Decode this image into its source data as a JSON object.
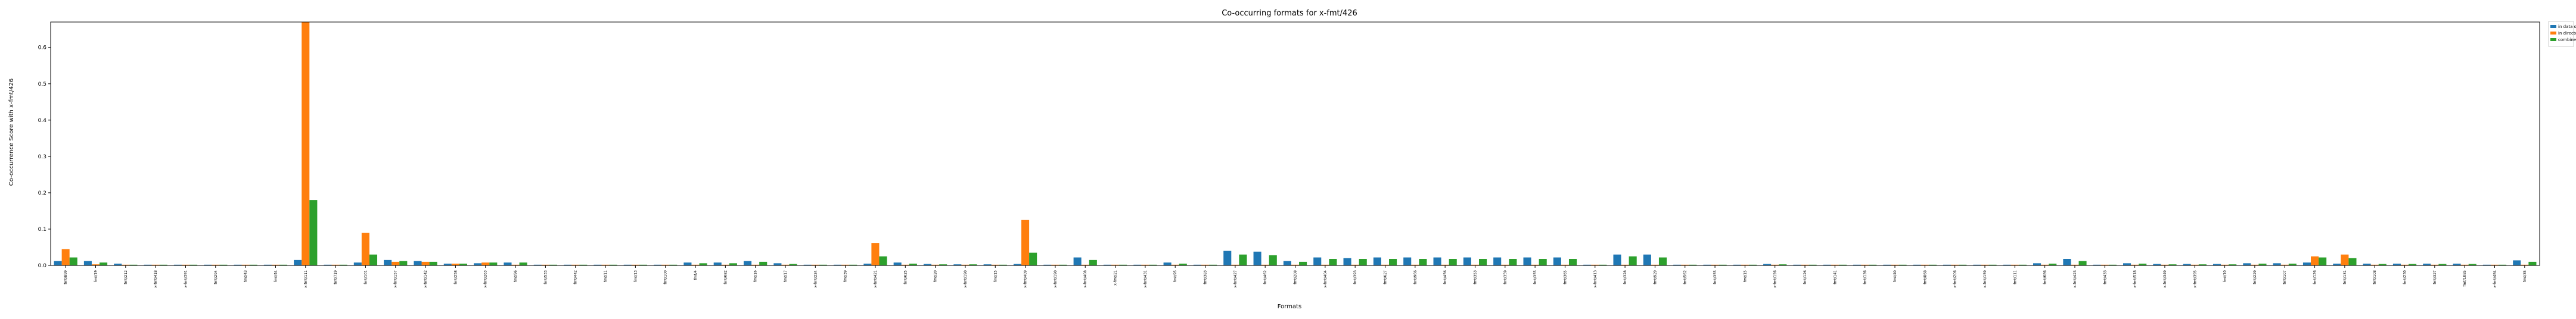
{
  "chart_data": {
    "type": "bar",
    "title": "Co-occurring formats for x-fmt/426",
    "xlabel": "Formats",
    "ylabel": "Co-occurrence Score with x-fmt/426",
    "ylim": [
      0,
      0.67
    ],
    "yticks": [
      0.0,
      0.1,
      0.2,
      0.3,
      0.4,
      0.5,
      0.6
    ],
    "grid": false,
    "legend_position": "top-right",
    "colors": [
      "#1f77b4",
      "#ff7f0e",
      "#2ca02c"
    ],
    "categories": [
      "fmt/899",
      "fmt/19",
      "fmt/212",
      "x-fmt/418",
      "x-fmt/391",
      "fmt/294",
      "fmt/43",
      "fmt/44",
      "x-fmt/111",
      "fmt/719",
      "fmt/101",
      "x-fmt/157",
      "x-fmt/142",
      "fmt/258",
      "x-fmt/263",
      "fmt/96",
      "fmt/533",
      "fmt/442",
      "fmt/11",
      "fmt/13",
      "fmt/100",
      "fmt/4",
      "fmt/682",
      "fmt/16",
      "fmt/17",
      "x-fmt/224",
      "fmt/39",
      "x-fmt/421",
      "fmt/625",
      "fmt/20",
      "x-fmt/190",
      "fmt/15",
      "x-fmt/409",
      "x-fmt/190",
      "x-fmt/408",
      "x-fmt/21",
      "x-fmt/431",
      "fmt/95",
      "fmt/383",
      "x-fmt/427",
      "fmt/462",
      "fmt/208",
      "x-fmt/404",
      "fmt/393",
      "fmt/627",
      "fmt/966",
      "fmt/456",
      "fmt/353",
      "fmt/359",
      "fmt/355",
      "fmt/365",
      "x-fmt/413",
      "fmt/328",
      "fmt/929",
      "fmt/562",
      "fmt/355",
      "fmt/15",
      "x-fmt/156",
      "fmt/126",
      "fmt/141",
      "fmt/136",
      "fmt/40",
      "fmt/868",
      "x-fmt/206",
      "x-fmt/159",
      "fmt/111",
      "fmt/686",
      "x-fmt/423",
      "fmt/433",
      "x-fmt/518",
      "x-fmt/349",
      "x-fmt/395",
      "fmt/10",
      "fmt/229",
      "fmt/107",
      "fmt/126",
      "fmt/131",
      "fmt/108",
      "fmt/230",
      "fmt/327",
      "fmt/1085",
      "x-fmt/484",
      "fmt/35"
    ],
    "series": [
      {
        "name": "in data objects",
        "values": [
          0.012,
          0.012,
          0.005,
          0.002,
          0.002,
          0.002,
          0.002,
          0.002,
          0.015,
          0.002,
          0.008,
          0.015,
          0.012,
          0.005,
          0.006,
          0.008,
          0.002,
          0.002,
          0.002,
          0.002,
          0.002,
          0.008,
          0.008,
          0.012,
          0.006,
          0.002,
          0.002,
          0.005,
          0.008,
          0.004,
          0.003,
          0.003,
          0.004,
          0.002,
          0.022,
          0.002,
          0.002,
          0.008,
          0.002,
          0.04,
          0.038,
          0.012,
          0.022,
          0.02,
          0.022,
          0.022,
          0.022,
          0.022,
          0.022,
          0.022,
          0.022,
          0.002,
          0.03,
          0.03,
          0.002,
          0.002,
          0.002,
          0.004,
          0.002,
          0.002,
          0.002,
          0.002,
          0.002,
          0.002,
          0.002,
          0.002,
          0.006,
          0.018,
          0.002,
          0.006,
          0.004,
          0.004,
          0.004,
          0.006,
          0.006,
          0.008,
          0.005,
          0.005,
          0.005,
          0.005,
          0.005,
          0.002,
          0.014
        ]
      },
      {
        "name": "in directories",
        "values": [
          0.045,
          0.003,
          0.002,
          0.002,
          0.002,
          0.002,
          0.002,
          0.002,
          0.67,
          0.002,
          0.09,
          0.01,
          0.01,
          0.005,
          0.008,
          0.002,
          0.002,
          0.002,
          0.002,
          0.002,
          0.002,
          0.002,
          0.002,
          0.002,
          0.002,
          0.002,
          0.002,
          0.062,
          0.002,
          0.002,
          0.002,
          0.002,
          0.125,
          0.002,
          0.002,
          0.002,
          0.002,
          0.002,
          0.002,
          0.002,
          0.002,
          0.002,
          0.002,
          0.002,
          0.002,
          0.002,
          0.002,
          0.002,
          0.002,
          0.002,
          0.002,
          0.002,
          0.002,
          0.002,
          0.002,
          0.002,
          0.002,
          0.002,
          0.002,
          0.002,
          0.002,
          0.002,
          0.002,
          0.002,
          0.002,
          0.002,
          0.002,
          0.002,
          0.002,
          0.002,
          0.002,
          0.002,
          0.002,
          0.002,
          0.002,
          0.025,
          0.03,
          0.002,
          0.002,
          0.002,
          0.002,
          0.002,
          0.002
        ]
      },
      {
        "name": "combined",
        "values": [
          0.022,
          0.008,
          0.002,
          0.002,
          0.002,
          0.002,
          0.002,
          0.002,
          0.18,
          0.002,
          0.03,
          0.012,
          0.01,
          0.005,
          0.008,
          0.008,
          0.002,
          0.002,
          0.002,
          0.002,
          0.002,
          0.006,
          0.006,
          0.01,
          0.004,
          0.002,
          0.002,
          0.025,
          0.005,
          0.003,
          0.003,
          0.002,
          0.035,
          0.002,
          0.015,
          0.002,
          0.002,
          0.005,
          0.002,
          0.03,
          0.028,
          0.01,
          0.018,
          0.018,
          0.018,
          0.018,
          0.018,
          0.018,
          0.018,
          0.018,
          0.018,
          0.002,
          0.025,
          0.022,
          0.002,
          0.002,
          0.002,
          0.003,
          0.002,
          0.002,
          0.002,
          0.002,
          0.002,
          0.002,
          0.002,
          0.002,
          0.005,
          0.012,
          0.002,
          0.005,
          0.003,
          0.003,
          0.003,
          0.005,
          0.005,
          0.022,
          0.02,
          0.004,
          0.004,
          0.004,
          0.004,
          0.002,
          0.01
        ]
      }
    ]
  }
}
